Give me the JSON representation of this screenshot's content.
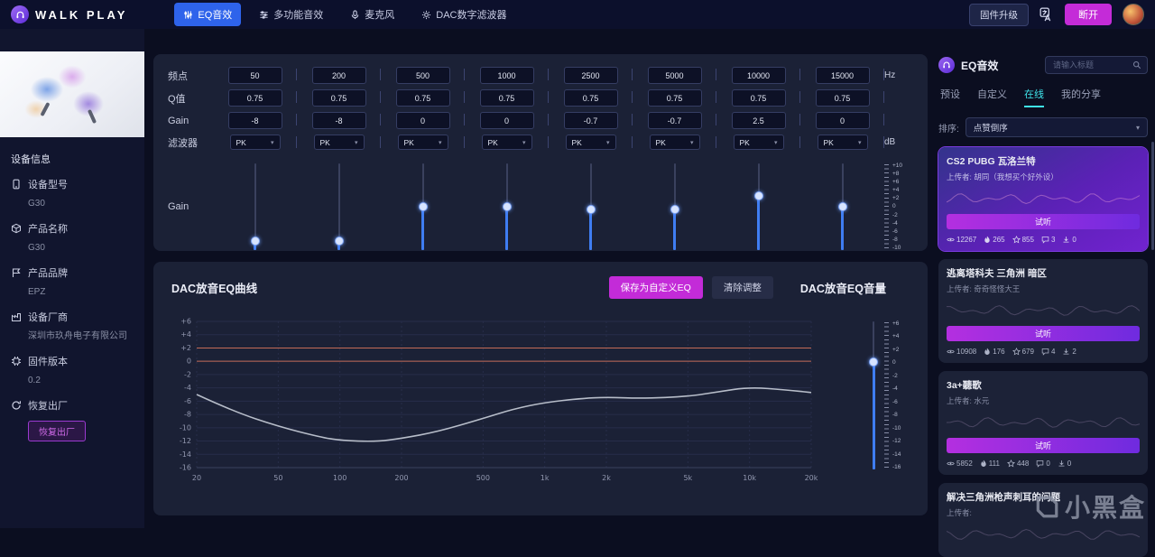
{
  "topbar": {
    "app_name": "WALK PLAY",
    "nav": [
      {
        "key": "eq",
        "label": "EQ音效",
        "icon": "eq-sliders-icon",
        "active": true
      },
      {
        "key": "multi-effects",
        "label": "多功能音效",
        "icon": "multi-sliders-icon",
        "active": false
      },
      {
        "key": "microphone",
        "label": "麦克风",
        "icon": "mic-icon",
        "active": false
      },
      {
        "key": "dac-filter",
        "label": "DAC数字滤波器",
        "icon": "gear-icon",
        "active": false
      }
    ],
    "firmware_button": "固件升级",
    "disconnect_button": "断开"
  },
  "sidebar": {
    "section_title": "设备信息",
    "items": [
      {
        "icon": "device-icon",
        "label": "设备型号",
        "value": "G30"
      },
      {
        "icon": "product-icon",
        "label": "产品名称",
        "value": "G30"
      },
      {
        "icon": "brand-icon",
        "label": "产品品牌",
        "value": "EPZ"
      },
      {
        "icon": "factory-icon",
        "label": "设备厂商",
        "value": "深圳市玖舟电子有限公司"
      },
      {
        "icon": "chip-icon",
        "label": "固件版本",
        "value": "0.2"
      },
      {
        "icon": "reset-icon",
        "label": "恢复出厂",
        "value": null
      }
    ],
    "reset_button": "恢复出厂"
  },
  "eq": {
    "row_labels": [
      "频点",
      "Q值",
      "Gain",
      "滤波器"
    ],
    "unit_hz": "Hz",
    "unit_db": "dB",
    "gain_label": "Gain",
    "filter_chevron": "▾",
    "bands": [
      {
        "freq": "50",
        "q": "0.75",
        "gain": "-8",
        "filter": "PK",
        "slider_value": -8
      },
      {
        "freq": "200",
        "q": "0.75",
        "gain": "-8",
        "filter": "PK",
        "slider_value": -8
      },
      {
        "freq": "500",
        "q": "0.75",
        "gain": "0",
        "filter": "PK",
        "slider_value": 0
      },
      {
        "freq": "1000",
        "q": "0.75",
        "gain": "0",
        "filter": "PK",
        "slider_value": 0
      },
      {
        "freq": "2500",
        "q": "0.75",
        "gain": "-0.7",
        "filter": "PK",
        "slider_value": -0.7
      },
      {
        "freq": "5000",
        "q": "0.75",
        "gain": "-0.7",
        "filter": "PK",
        "slider_value": -0.7
      },
      {
        "freq": "10000",
        "q": "0.75",
        "gain": "2.5",
        "filter": "PK",
        "slider_value": 2.5
      },
      {
        "freq": "15000",
        "q": "0.75",
        "gain": "0",
        "filter": "PK",
        "slider_value": 0
      }
    ],
    "slider_scale": [
      "+10",
      "+8",
      "+6",
      "+4",
      "+2",
      "0",
      "-2",
      "-4",
      "-6",
      "-8",
      "-10"
    ],
    "slider_range": [
      10,
      -10
    ]
  },
  "curve": {
    "title": "DAC放音EQ曲线",
    "save_button": "保存为自定义EQ",
    "clear_button": "清除调整",
    "volume_title": "DAC放音EQ音量",
    "volume_value": 0,
    "volume_scale": [
      "+6",
      "+4",
      "+2",
      "0",
      "-2",
      "-4",
      "-6",
      "-8",
      "-10",
      "-12",
      "-14",
      "-16"
    ],
    "volume_range": [
      6,
      -16
    ],
    "chart_data": {
      "type": "line",
      "title": "DAC放音EQ曲线",
      "x_scale": "log",
      "xlim": [
        20,
        20000
      ],
      "ylim": [
        -16,
        6
      ],
      "grid": true,
      "x_ticks": [
        {
          "value": 20,
          "label": "20"
        },
        {
          "value": 50,
          "label": "50"
        },
        {
          "value": 100,
          "label": "100"
        },
        {
          "value": 200,
          "label": "200"
        },
        {
          "value": 500,
          "label": "500"
        },
        {
          "value": 1000,
          "label": "1k"
        },
        {
          "value": 2000,
          "label": "2k"
        },
        {
          "value": 5000,
          "label": "5k"
        },
        {
          "value": 10000,
          "label": "10k"
        },
        {
          "value": 20000,
          "label": "20k"
        }
      ],
      "y_ticks": [
        {
          "value": 6,
          "label": "+6"
        },
        {
          "value": 4,
          "label": "+4"
        },
        {
          "value": 2,
          "label": "+2"
        },
        {
          "value": 0,
          "label": "0"
        },
        {
          "value": -2,
          "label": "-2"
        },
        {
          "value": -4,
          "label": "-4"
        },
        {
          "value": -6,
          "label": "-6"
        },
        {
          "value": -8,
          "label": "-8"
        },
        {
          "value": -10,
          "label": "-10"
        },
        {
          "value": -12,
          "label": "-12"
        },
        {
          "value": -14,
          "label": "-14"
        },
        {
          "value": -16,
          "label": "-16"
        }
      ],
      "ref_lines": [
        2,
        0
      ],
      "series": [
        {
          "name": "DAC EQ response",
          "x": [
            20,
            30,
            50,
            80,
            100,
            150,
            200,
            300,
            500,
            700,
            1000,
            1500,
            2000,
            3000,
            5000,
            7000,
            10000,
            15000,
            20000
          ],
          "y": [
            -5,
            -7.5,
            -9.8,
            -11.4,
            -11.9,
            -12.1,
            -11.6,
            -10.6,
            -8.6,
            -7.2,
            -6.2,
            -5.6,
            -5.4,
            -5.6,
            -5.3,
            -4.6,
            -3.9,
            -4.3,
            -4.7
          ]
        }
      ]
    }
  },
  "online": {
    "title": "EQ音效",
    "search_placeholder": "请输入标题",
    "tabs": [
      {
        "label": "预设",
        "active": false
      },
      {
        "label": "自定义",
        "active": false
      },
      {
        "label": "在线",
        "active": true
      },
      {
        "label": "我的分享",
        "active": false
      }
    ],
    "sort_label": "排序:",
    "sort_value": "点赞倒序",
    "listen_label": "试听",
    "cards": [
      {
        "title": "CS2 PUBG 瓦洛兰特",
        "uploader": "上传者: 胡同（我想买个好外设）",
        "highlighted": true,
        "stats": {
          "views": "12267",
          "likes": "265",
          "favorites": "855",
          "comments": "3",
          "downloads": "0"
        }
      },
      {
        "title": "逃离塔科夫 三角洲 暗区",
        "uploader": "上传者: 奇奇怪怪大王",
        "highlighted": false,
        "stats": {
          "views": "10908",
          "likes": "176",
          "favorites": "679",
          "comments": "4",
          "downloads": "2"
        }
      },
      {
        "title": "3a+聽歌",
        "uploader": "上传者: 水元",
        "highlighted": false,
        "stats": {
          "views": "5852",
          "likes": "111",
          "favorites": "448",
          "comments": "0",
          "downloads": "0"
        }
      },
      {
        "title": "解决三角洲枪声刺耳的问题",
        "uploader": "上传者:",
        "highlighted": false,
        "stats": null
      }
    ]
  },
  "watermark": "小黑盒"
}
